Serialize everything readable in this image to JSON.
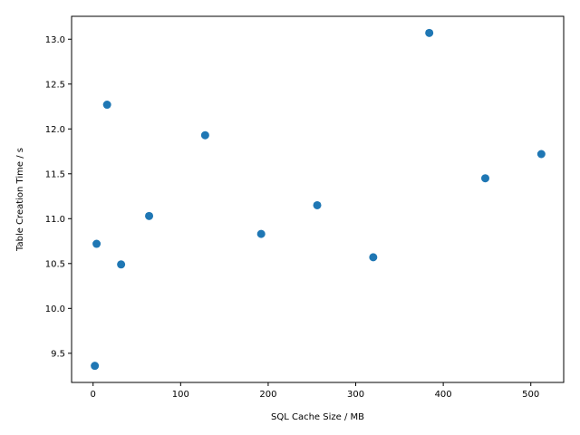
{
  "chart_data": {
    "type": "scatter",
    "title": "",
    "xlabel": "SQL Cache Size / MB",
    "ylabel": "Table Creation Time / s",
    "xlim": [
      -24.55,
      537.55
    ],
    "ylim": [
      9.175,
      13.255
    ],
    "xticks": [
      0,
      100,
      200,
      300,
      400,
      500
    ],
    "xtick_labels": [
      "0",
      "100",
      "200",
      "300",
      "400",
      "500"
    ],
    "yticks": [
      9.5,
      10.0,
      10.5,
      11.0,
      11.5,
      12.0,
      12.5,
      13.0
    ],
    "ytick_labels": [
      "9.5",
      "10.0",
      "10.5",
      "11.0",
      "11.5",
      "12.0",
      "12.5",
      "13.0"
    ],
    "grid": false,
    "marker_color": "#1f77b4",
    "points": [
      {
        "x": 2,
        "y": 9.36
      },
      {
        "x": 4,
        "y": 10.72
      },
      {
        "x": 16,
        "y": 12.27
      },
      {
        "x": 32,
        "y": 10.49
      },
      {
        "x": 64,
        "y": 11.03
      },
      {
        "x": 128,
        "y": 11.93
      },
      {
        "x": 192,
        "y": 10.83
      },
      {
        "x": 256,
        "y": 11.15
      },
      {
        "x": 320,
        "y": 10.57
      },
      {
        "x": 384,
        "y": 13.07
      },
      {
        "x": 448,
        "y": 11.45
      },
      {
        "x": 512,
        "y": 11.72
      }
    ]
  }
}
